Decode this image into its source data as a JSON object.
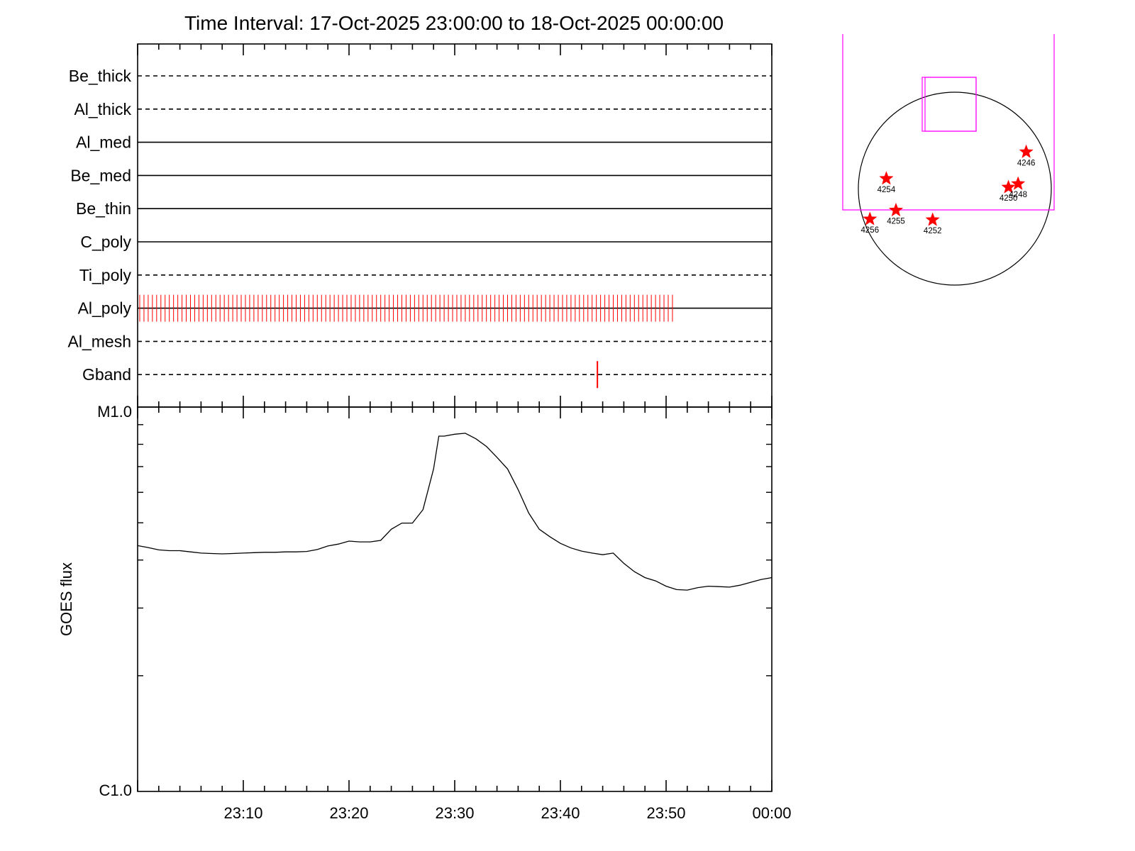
{
  "title": "Time Interval: 17-Oct-2025 23:00:00 to 18-Oct-2025 00:00:00",
  "colors": {
    "axis": "#000000",
    "event": "#ff0000",
    "fov": "#ff00ff",
    "disk": "#000000"
  },
  "chart_data": [
    {
      "type": "timeline",
      "x_range": [
        "23:00",
        "00:00"
      ],
      "rows": [
        {
          "name": "Be_thick",
          "style": "dashed",
          "events": []
        },
        {
          "name": "Al_thick",
          "style": "dashed",
          "events": []
        },
        {
          "name": "Al_med",
          "style": "solid",
          "events": []
        },
        {
          "name": "Be_med",
          "style": "solid",
          "events": []
        },
        {
          "name": "Be_thin",
          "style": "solid",
          "events": []
        },
        {
          "name": "C_poly",
          "style": "solid",
          "events": []
        },
        {
          "name": "Ti_poly",
          "style": "dashed",
          "events": []
        },
        {
          "name": "Al_poly",
          "style": "solid",
          "events": [],
          "event_span_minutes": [
            0.2,
            50.8
          ],
          "event_step_minutes": 0.4
        },
        {
          "name": "Al_mesh",
          "style": "dashed",
          "events": []
        },
        {
          "name": "Gband",
          "style": "dashed",
          "events": [
            43.5
          ]
        }
      ]
    },
    {
      "type": "line",
      "ylabel": "GOES flux",
      "yscale": "log",
      "ylim": [
        "C1.0",
        "M1.0"
      ],
      "ylim_values": [
        1e-06,
        1e-05
      ],
      "xticks": [
        "23:10",
        "23:20",
        "23:30",
        "23:40",
        "23:50",
        "00:00"
      ],
      "xlim_minutes": [
        0,
        60
      ],
      "series": [
        {
          "x_minutes": [
            0,
            1,
            2,
            3,
            4,
            5,
            6,
            7,
            8,
            9,
            10,
            11,
            12,
            13,
            14,
            15,
            16,
            17,
            18,
            19,
            20,
            21,
            22,
            23,
            24,
            25,
            26,
            27,
            28,
            28.5,
            29,
            30,
            31,
            32,
            33,
            34,
            35,
            36,
            37,
            38,
            39,
            40,
            41,
            42,
            43,
            44,
            45,
            46,
            47,
            48,
            49,
            50,
            51,
            52,
            53,
            54,
            55,
            56,
            57,
            58,
            59,
            60
          ],
          "flux": [
            4.36e-06,
            4.31e-06,
            4.25e-06,
            4.23e-06,
            4.23e-06,
            4.2e-06,
            4.17e-06,
            4.16e-06,
            4.15e-06,
            4.16e-06,
            4.17e-06,
            4.18e-06,
            4.19e-06,
            4.19e-06,
            4.2e-06,
            4.2e-06,
            4.21e-06,
            4.26e-06,
            4.35e-06,
            4.4e-06,
            4.48e-06,
            4.46e-06,
            4.46e-06,
            4.5e-06,
            4.81e-06,
            4.99e-06,
            4.99e-06,
            5.41e-06,
            6.9e-06,
            8.4e-06,
            8.4e-06,
            8.5e-06,
            8.55e-06,
            8.27e-06,
            7.9e-06,
            7.4e-06,
            6.9e-06,
            6.1e-06,
            5.3e-06,
            4.81e-06,
            4.6e-06,
            4.42e-06,
            4.3e-06,
            4.22e-06,
            4.17e-06,
            4.13e-06,
            4.17e-06,
            3.92e-06,
            3.73e-06,
            3.6e-06,
            3.53e-06,
            3.42e-06,
            3.35e-06,
            3.34e-06,
            3.39e-06,
            3.42e-06,
            3.41e-06,
            3.4e-06,
            3.44e-06,
            3.5e-06,
            3.56e-06,
            3.6e-06
          ]
        }
      ]
    },
    {
      "type": "scatter",
      "description_kind": "solar-disk-map",
      "points": [
        {
          "label": "4246",
          "x": 0.87,
          "y": 0.31
        },
        {
          "label": "4254",
          "x": 0.145,
          "y": 0.448
        },
        {
          "label": "4250",
          "x": 0.778,
          "y": 0.493
        },
        {
          "label": "4248",
          "x": 0.828,
          "y": 0.475
        },
        {
          "label": "4255",
          "x": 0.195,
          "y": 0.612
        },
        {
          "label": "4256",
          "x": 0.06,
          "y": 0.658
        },
        {
          "label": "4252",
          "x": 0.385,
          "y": 0.662
        }
      ]
    }
  ]
}
